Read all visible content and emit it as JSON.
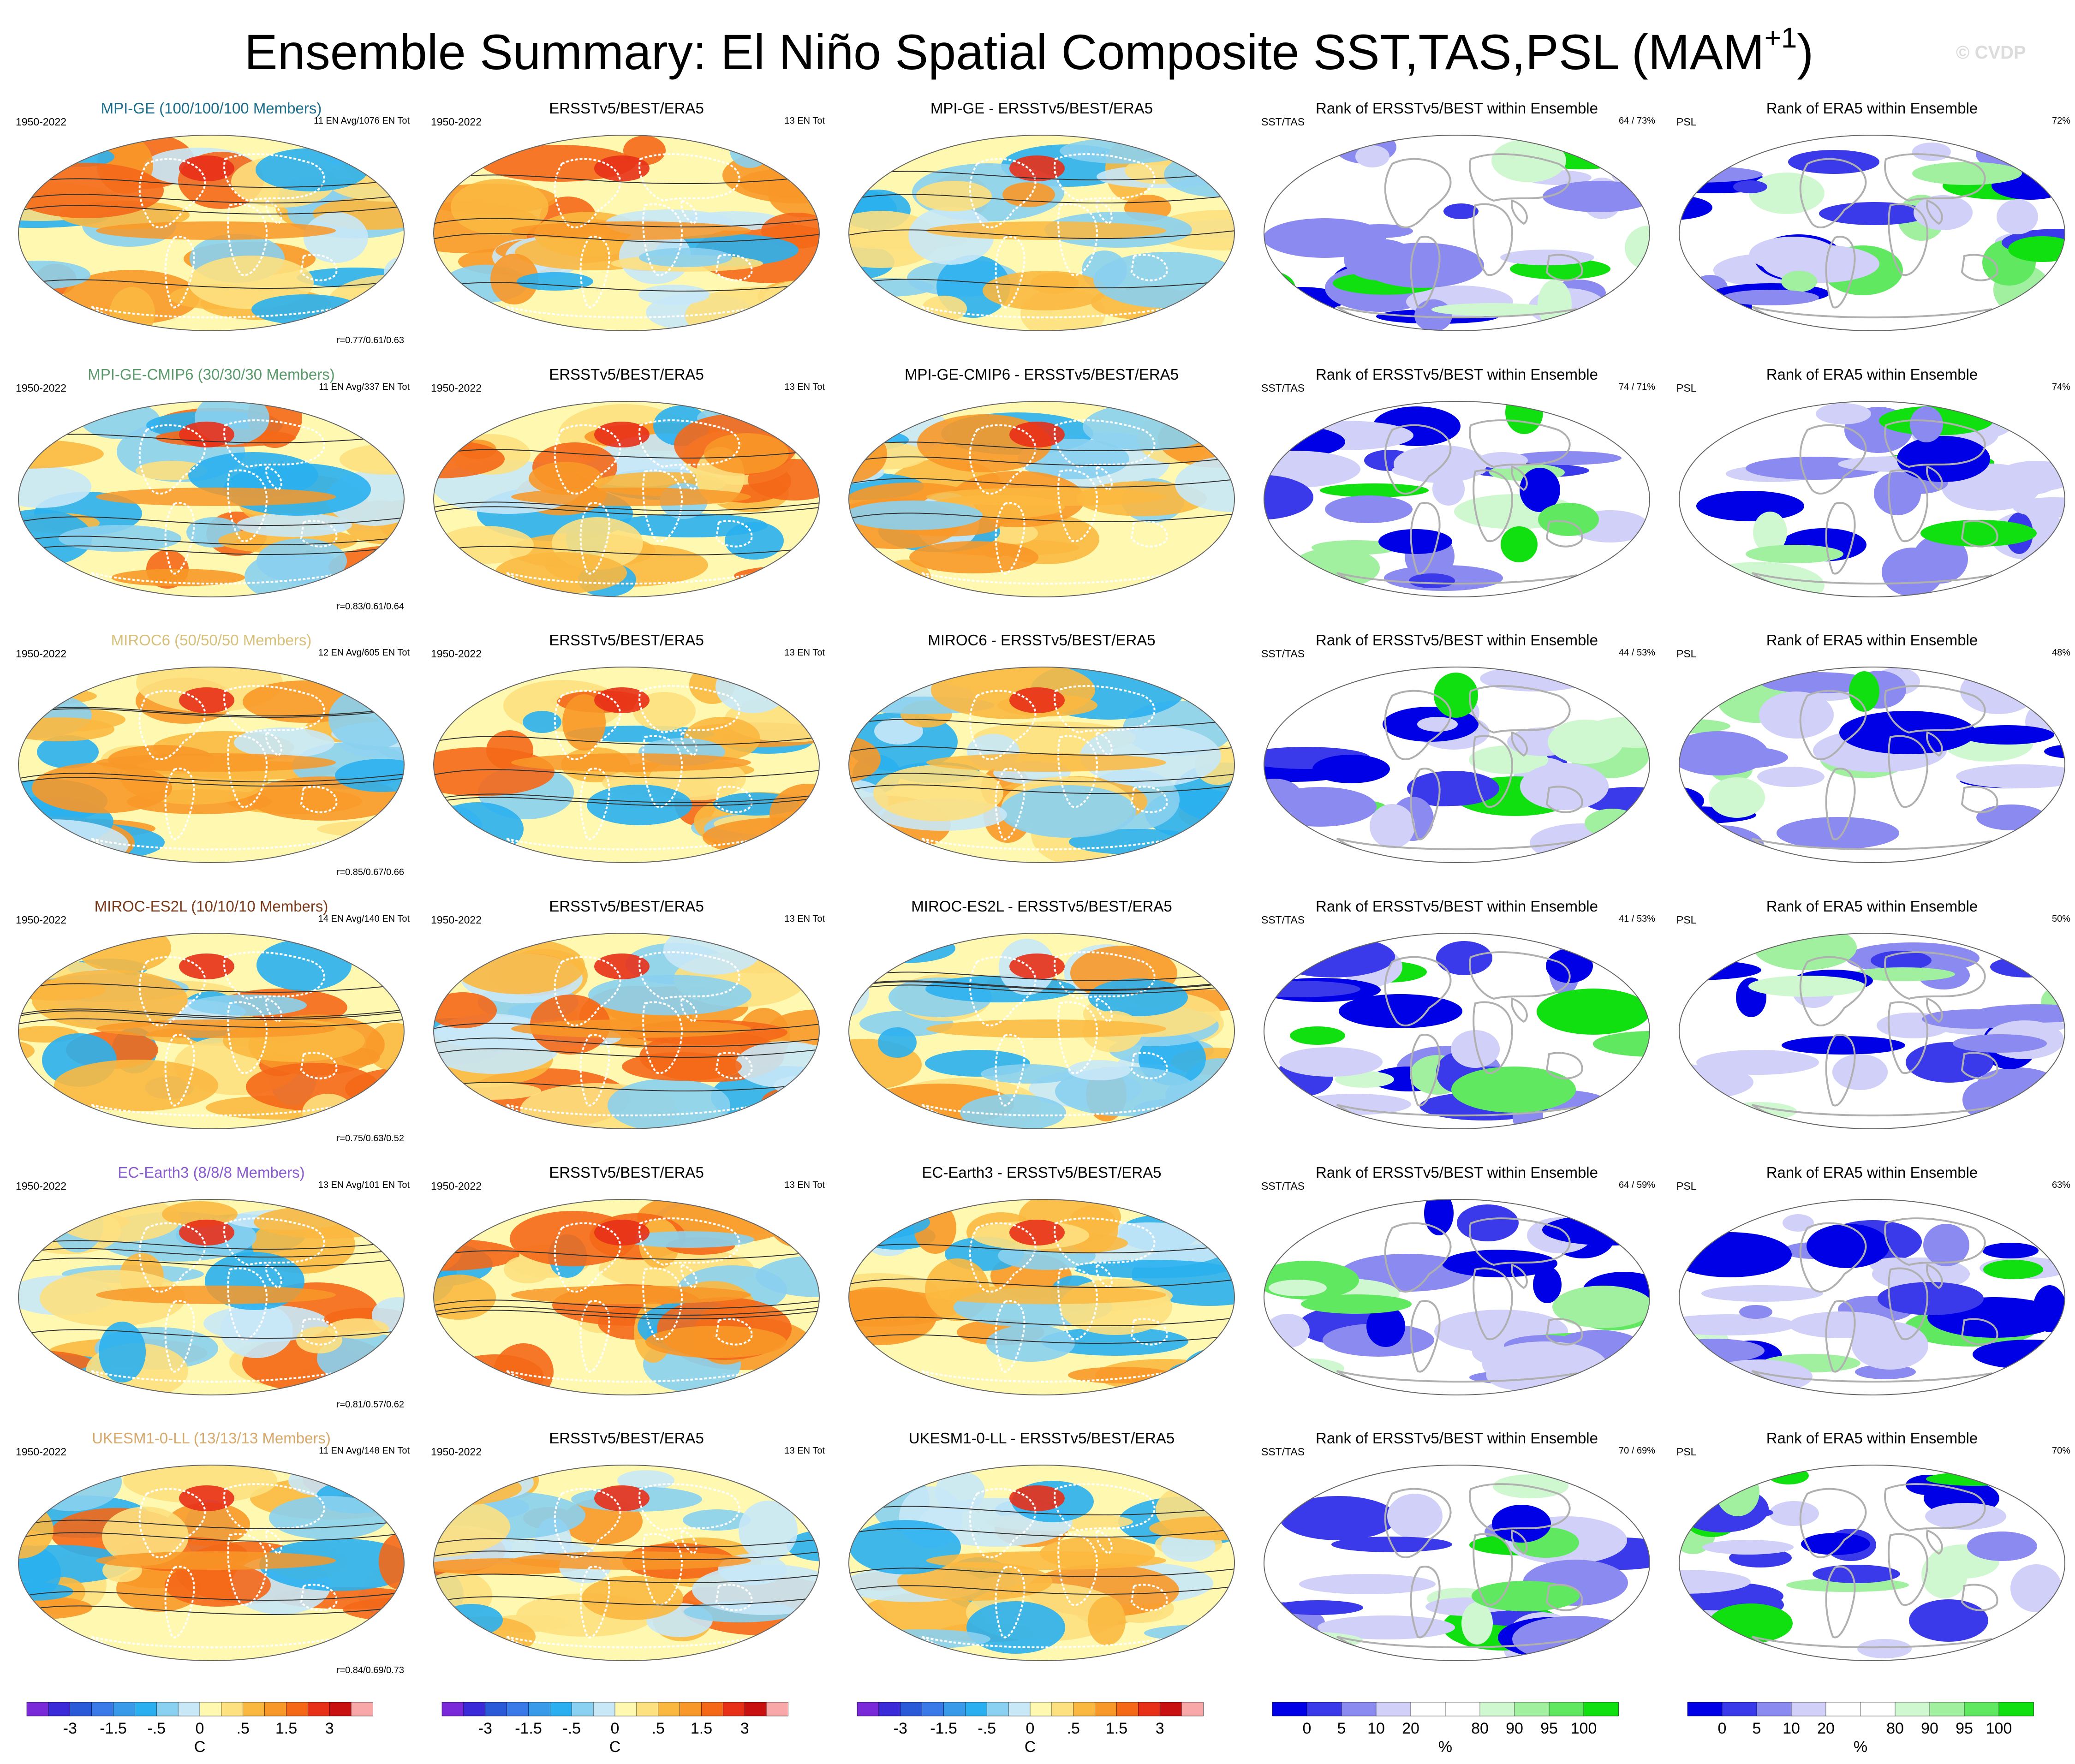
{
  "title": {
    "main": "Ensemble Summary: El Niño Spatial Composite SST,TAS,PSL (MAM",
    "superscript": "+1",
    "close": ")"
  },
  "watermark": "© CVDP",
  "column_titles": {
    "observed": "ERSSTv5/BEST/ERA5",
    "rank_sst": "Rank of ERSSTv5/BEST within Ensemble",
    "rank_psl": "Rank of ERA5 within Ensemble"
  },
  "labels": {
    "period": "1950-2022",
    "obs_count": "13 EN Tot",
    "sst_tas": "SST/TAS",
    "psl": "PSL"
  },
  "rows": [
    {
      "model": "MPI-GE",
      "members": "MPI-GE (100/100/100 Members)",
      "color": "#1a6c8a",
      "en_avg": "11 EN Avg/1076 EN Tot",
      "diff_title": "MPI-GE - ERSSTv5/BEST/ERA5",
      "corr": "r=0.77/0.61/0.63",
      "rank_sst": "64 /  73%",
      "rank_psl": "72%"
    },
    {
      "model": "MPI-GE-CMIP6",
      "members": "MPI-GE-CMIP6 (30/30/30 Members)",
      "color": "#5a9a6a",
      "en_avg": "11 EN Avg/337 EN Tot",
      "diff_title": "MPI-GE-CMIP6 - ERSSTv5/BEST/ERA5",
      "corr": "r=0.83/0.61/0.64",
      "rank_sst": "74 /  71%",
      "rank_psl": "74%"
    },
    {
      "model": "MIROC6",
      "members": "MIROC6 (50/50/50 Members)",
      "color": "#d8c07a",
      "en_avg": "12 EN Avg/605 EN Tot",
      "diff_title": "MIROC6 - ERSSTv5/BEST/ERA5",
      "corr": "r=0.85/0.67/0.66",
      "rank_sst": "44 /  53%",
      "rank_psl": "48%"
    },
    {
      "model": "MIROC-ES2L",
      "members": "MIROC-ES2L (10/10/10 Members)",
      "color": "#7a3a1a",
      "en_avg": "14 EN Avg/140 EN Tot",
      "diff_title": "MIROC-ES2L - ERSSTv5/BEST/ERA5",
      "corr": "r=0.75/0.63/0.52",
      "rank_sst": "41 /  53%",
      "rank_psl": "50%"
    },
    {
      "model": "EC-Earth3",
      "members": "EC-Earth3 (8/8/8 Members)",
      "color": "#8a5ad0",
      "en_avg": "13 EN Avg/101 EN Tot",
      "diff_title": "EC-Earth3 - ERSSTv5/BEST/ERA5",
      "corr": "r=0.81/0.57/0.62",
      "rank_sst": "64 /  59%",
      "rank_psl": "63%"
    },
    {
      "model": "UKESM1-0-LL",
      "members": "UKESM1-0-LL (13/13/13 Members)",
      "color": "#d8a86a",
      "en_avg": "11 EN Avg/148 EN Tot",
      "diff_title": "UKESM1-0-LL - ERSSTv5/BEST/ERA5",
      "corr": "r=0.84/0.69/0.73",
      "rank_sst": "70 /  69%",
      "rank_psl": "70%"
    }
  ],
  "colorbars": {
    "temperature": {
      "colors": [
        "#7a2ad8",
        "#3a2ad8",
        "#2a5ad8",
        "#3a7ae8",
        "#3a9aea",
        "#2ab0f0",
        "#8ad0f0",
        "#c8e8f8",
        "#fff8b0",
        "#fde080",
        "#fbb840",
        "#f89828",
        "#f46818",
        "#e83018",
        "#c81010",
        "#f8a8a8"
      ],
      "ticks": [
        "-3",
        "-1.5",
        "-.5",
        "0",
        ".5",
        "1.5",
        "3"
      ],
      "unit": "C"
    },
    "rank": {
      "colors": [
        "#0000e6",
        "#3a3aea",
        "#8a8af0",
        "#d0d0f8",
        "#ffffff",
        "#ffffff",
        "#d0f8d0",
        "#a0f0a0",
        "#60e860",
        "#10e010"
      ],
      "ticks": [
        "0",
        "5",
        "10",
        "20",
        "80",
        "90",
        "95",
        "100"
      ],
      "unit": "%"
    }
  }
}
